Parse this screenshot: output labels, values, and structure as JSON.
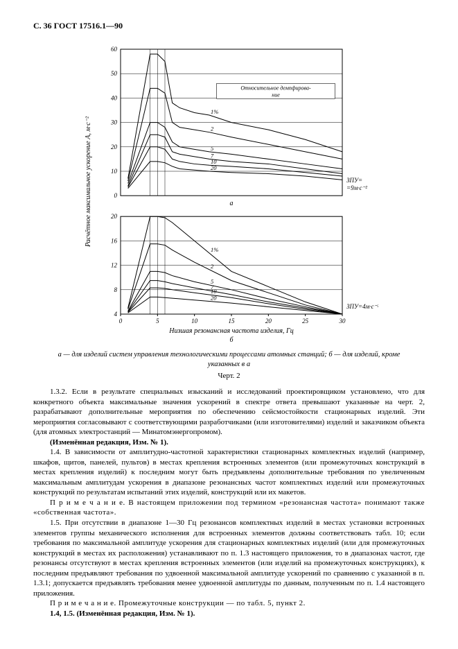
{
  "header": "С. 36 ГОСТ 17516.1—90",
  "chart_a": {
    "type": "line",
    "background_color": "#ffffff",
    "axis_color": "#000000",
    "grid_color": "#000000",
    "line_color": "#000000",
    "line_width": 1.0,
    "xlim": [
      0,
      30
    ],
    "ylim": [
      0,
      60
    ],
    "ytick_step": 10,
    "yticks": [
      0,
      10,
      20,
      30,
      40,
      50,
      60
    ],
    "annotation_box_text": "Относительное демпфирова-\nние",
    "right_annotation": "ЗПУ=\n=9м·с⁻²",
    "x_peak_lines": [
      4,
      5,
      6
    ],
    "sub_label": "а",
    "series": [
      {
        "label": "1%",
        "points": [
          [
            1,
            7
          ],
          [
            4,
            58
          ],
          [
            5,
            58
          ],
          [
            6,
            55
          ],
          [
            7,
            38
          ],
          [
            8,
            36
          ],
          [
            10,
            34
          ],
          [
            12,
            33
          ],
          [
            15,
            30
          ],
          [
            20,
            27
          ],
          [
            25,
            23
          ],
          [
            30,
            18
          ]
        ]
      },
      {
        "label": "2",
        "points": [
          [
            1,
            6
          ],
          [
            4,
            44
          ],
          [
            5,
            44
          ],
          [
            6,
            42
          ],
          [
            7,
            30
          ],
          [
            8,
            28
          ],
          [
            10,
            27
          ],
          [
            12,
            26
          ],
          [
            15,
            24
          ],
          [
            20,
            21
          ],
          [
            25,
            18
          ],
          [
            30,
            15
          ]
        ]
      },
      {
        "label": "5",
        "points": [
          [
            1,
            5
          ],
          [
            4,
            30
          ],
          [
            5,
            30
          ],
          [
            6,
            28
          ],
          [
            7,
            22
          ],
          [
            8,
            20
          ],
          [
            10,
            19
          ],
          [
            12,
            18
          ],
          [
            15,
            17
          ],
          [
            20,
            15
          ],
          [
            25,
            13
          ],
          [
            30,
            11
          ]
        ]
      },
      {
        "label": "7",
        "points": [
          [
            1,
            4
          ],
          [
            4,
            25
          ],
          [
            5,
            25
          ],
          [
            6,
            24
          ],
          [
            7,
            18
          ],
          [
            8,
            17
          ],
          [
            10,
            16
          ],
          [
            12,
            15
          ],
          [
            15,
            14
          ],
          [
            20,
            13
          ],
          [
            25,
            11
          ],
          [
            30,
            9
          ]
        ]
      },
      {
        "label": "10",
        "points": [
          [
            1,
            3.5
          ],
          [
            4,
            20
          ],
          [
            5,
            20
          ],
          [
            6,
            19
          ],
          [
            7,
            15
          ],
          [
            8,
            14
          ],
          [
            10,
            13
          ],
          [
            12,
            12.5
          ],
          [
            15,
            12
          ],
          [
            20,
            11
          ],
          [
            25,
            9.5
          ],
          [
            30,
            8
          ]
        ]
      },
      {
        "label": "20",
        "points": [
          [
            1,
            3
          ],
          [
            4,
            14
          ],
          [
            5,
            14
          ],
          [
            6,
            13.5
          ],
          [
            7,
            12
          ],
          [
            8,
            11
          ],
          [
            10,
            10.5
          ],
          [
            12,
            10
          ],
          [
            15,
            9.5
          ],
          [
            20,
            9
          ],
          [
            25,
            8
          ],
          [
            30,
            6.5
          ]
        ]
      }
    ]
  },
  "chart_b": {
    "type": "line",
    "background_color": "#ffffff",
    "axis_color": "#000000",
    "grid_color": "#000000",
    "line_color": "#000000",
    "line_width": 1.0,
    "xlim": [
      0,
      30
    ],
    "ylim": [
      4,
      20
    ],
    "yticks": [
      4,
      8,
      12,
      16,
      20
    ],
    "xticks": [
      0,
      5,
      10,
      15,
      20,
      25,
      30
    ],
    "x_peak_lines": [
      4,
      5,
      6
    ],
    "xlabel": "Низшая резонансная частота изделия, Гц",
    "right_annotation": "ЗПУ=4м·с⁻²",
    "sub_label": "б",
    "series": [
      {
        "label": "1%",
        "points": [
          [
            1,
            5
          ],
          [
            4,
            20
          ],
          [
            5,
            20
          ],
          [
            6,
            19.8
          ],
          [
            7,
            19
          ],
          [
            10,
            16
          ],
          [
            15,
            11
          ],
          [
            20,
            8.5
          ],
          [
            25,
            6
          ],
          [
            30,
            4
          ]
        ]
      },
      {
        "label": "2",
        "points": [
          [
            1,
            4.8
          ],
          [
            4,
            15.5
          ],
          [
            5,
            15.5
          ],
          [
            6,
            15.3
          ],
          [
            7,
            14.5
          ],
          [
            10,
            12.5
          ],
          [
            15,
            9.5
          ],
          [
            20,
            7.5
          ],
          [
            25,
            5.5
          ],
          [
            30,
            4
          ]
        ]
      },
      {
        "label": "5",
        "points": [
          [
            1,
            4.5
          ],
          [
            4,
            11
          ],
          [
            5,
            11
          ],
          [
            6,
            10.8
          ],
          [
            7,
            10.3
          ],
          [
            10,
            9.3
          ],
          [
            15,
            8
          ],
          [
            20,
            6.5
          ],
          [
            25,
            5.2
          ],
          [
            30,
            4
          ]
        ]
      },
      {
        "label": "7",
        "points": [
          [
            1,
            4.4
          ],
          [
            4,
            9.5
          ],
          [
            5,
            9.5
          ],
          [
            6,
            9.3
          ],
          [
            7,
            9
          ],
          [
            10,
            8.3
          ],
          [
            15,
            7.2
          ],
          [
            20,
            6
          ],
          [
            25,
            5
          ],
          [
            30,
            4
          ]
        ]
      },
      {
        "label": "10",
        "points": [
          [
            1,
            4.3
          ],
          [
            4,
            8.3
          ],
          [
            5,
            8.3
          ],
          [
            6,
            8.2
          ],
          [
            7,
            8
          ],
          [
            10,
            7.5
          ],
          [
            15,
            6.7
          ],
          [
            20,
            5.7
          ],
          [
            25,
            4.8
          ],
          [
            30,
            4
          ]
        ]
      },
      {
        "label": "20",
        "points": [
          [
            1,
            4.2
          ],
          [
            4,
            6.8
          ],
          [
            5,
            6.8
          ],
          [
            6,
            6.7
          ],
          [
            7,
            6.6
          ],
          [
            10,
            6.3
          ],
          [
            15,
            5.8
          ],
          [
            20,
            5.2
          ],
          [
            25,
            4.6
          ],
          [
            30,
            4
          ]
        ]
      }
    ]
  },
  "shared_ylabel": "Расчётное максимальное ускорение А, м·с⁻²",
  "caption_line": "а — для изделий систем управления технологическими процессами атомных станций; б — для изделий, кроме указанных в а",
  "figure_label": "Черт. 2",
  "paragraphs": {
    "p1": "1.3.2. Если в результате специальных изысканий и исследований проектировщиком установлено, что для конкретного объекта максимальные значения ускорений в спектре ответа превышают указанные на черт. 2, разрабатывают дополнительные мероприятия по обеспечению сейсмостойкости стационарных изделий. Эти мероприятия согласовывают с соответствующими разработчиками (или изготовителями) изделий и заказчиком объекта (для атомных электростанций — Минатомэнергопромом).",
    "p1a": "(Изменённая редакция, Изм. № 1).",
    "p2": "1.4. В зависимости от амплитудно-частотной характеристики стационарных комплектных изделий (например, шкафов, щитов, панелей, пультов) в местах крепления встроенных элементов (или промежуточных конструкций в местах крепления изделий) к последним могут быть предъявлены дополнительные требования по увеличенным максимальным амплитудам ускорения в диапазоне резонансных частот комплектных изделий или промежуточных конструкций по результатам испытаний этих изделий, конструкций или их макетов.",
    "p2note": "П р и м е ч а н и е. В настоящем приложении под термином «резонансная частота» понимают также «собственная частота».",
    "p3": "1.5. При отсутствии в диапазоне 1—30 Гц резонансов комплектных изделий в местах установки встроенных элементов группы механического исполнения для встроенных элементов должны соответствовать табл. 10; если требования по максимальной амплитуде ускорения для стационарных комплектных изделий (или для промежуточных конструкций в местах их расположения) устанавливают по п. 1.3 настоящего приложения, то в диапазонах частот, где резонансы отсутствуют в местах крепления встроенных элементов (или изделий на промежуточных конструкциях), к последним предъявляют требования по удвоенной максимальной амплитуде ускорений по сравнению с указанной в п. 1.3.1; допускается предъявлять требования менее удвоенной амплитуды по данным, полученным по п. 1.4 настоящего приложения.",
    "p3note": "П р и м е ч а н и е. Промежуточные конструкции — по табл. 5, пункт 2.",
    "p4": "1.4, 1.5. (Изменённая редакция, Изм. № 1)."
  }
}
